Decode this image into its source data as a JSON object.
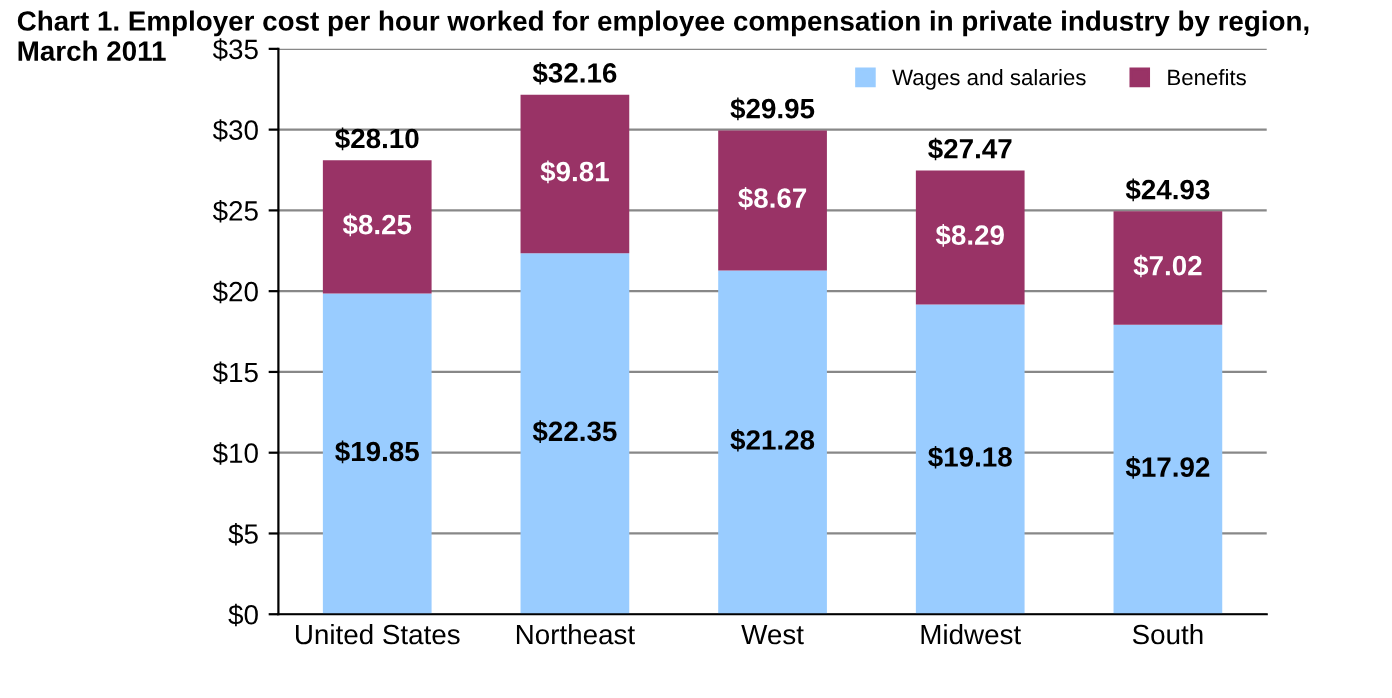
{
  "chart_data": {
    "type": "bar",
    "title": "Chart 1. Employer cost per hour worked for employee compensation in private industry by region, March 2011",
    "categories": [
      "United States",
      "Northeast",
      "West",
      "Midwest",
      "South"
    ],
    "stacked": true,
    "series": [
      {
        "name": "Wages and salaries",
        "color": "#99ccff",
        "values": [
          19.85,
          22.35,
          21.28,
          19.18,
          17.92
        ],
        "value_labels": [
          "$19.85",
          "$22.35",
          "$21.28",
          "$19.18",
          "$17.92"
        ]
      },
      {
        "name": "Benefits",
        "color": "#993366",
        "values": [
          8.25,
          9.81,
          8.67,
          8.29,
          7.02
        ],
        "value_labels": [
          "$8.25",
          "$9.81",
          "$8.67",
          "$8.29",
          "$7.02"
        ]
      }
    ],
    "totals": [
      "$28.10",
      "$32.16",
      "$29.95",
      "$27.47",
      "$24.93"
    ],
    "ylim": [
      0,
      35
    ],
    "yticks": [
      {
        "value": 0,
        "label": "$0"
      },
      {
        "value": 5,
        "label": "$5"
      },
      {
        "value": 10,
        "label": "$10"
      },
      {
        "value": 15,
        "label": "$15"
      },
      {
        "value": 20,
        "label": "$20"
      },
      {
        "value": 25,
        "label": "$25"
      },
      {
        "value": 30,
        "label": "$30"
      },
      {
        "value": 35,
        "label": "$35"
      }
    ],
    "grid": "y",
    "legend": "top right"
  }
}
